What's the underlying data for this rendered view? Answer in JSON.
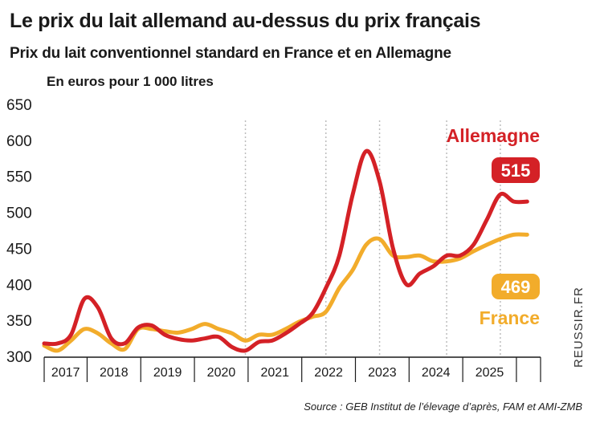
{
  "title": "Le prix du lait allemand au-dessus du prix français",
  "subtitle": "Prix du lait conventionnel standard en France et en Allemagne",
  "units": "En euros pour 1 000 litres",
  "source": "Source : GEB Institut de l’élevage d’après, FAM et AMI-ZMB",
  "credit": "REUSSIR.FR",
  "colors": {
    "germany": "#d42126",
    "france": "#f2ac2b",
    "grid": "#bdbdbd",
    "axis": "#1a1a1a"
  },
  "chart_data": {
    "type": "line",
    "title": "Le prix du lait allemand au-dessus du prix français",
    "ylabel": "En euros pour 1 000 litres",
    "ylim": [
      300,
      650
    ],
    "yticks": [
      300,
      350,
      400,
      450,
      500,
      550,
      600,
      650
    ],
    "xlim": [
      2016.5,
      2025.75
    ],
    "x_categories": [
      "2017",
      "2018",
      "2019",
      "2020",
      "2021",
      "2022",
      "2023",
      "2024",
      "2025"
    ],
    "x_tick_labels": [
      "2017",
      "2018",
      "2019",
      "2020",
      "2021",
      "2022",
      "2023",
      "2024",
      "2025"
    ],
    "grid": "vertical dotted lines at selected year boundaries",
    "x": [
      2016.5,
      2016.75,
      2017.0,
      2017.25,
      2017.5,
      2017.75,
      2018.0,
      2018.25,
      2018.5,
      2018.75,
      2019.0,
      2019.25,
      2019.5,
      2019.75,
      2020.0,
      2020.25,
      2020.5,
      2020.75,
      2021.0,
      2021.25,
      2021.5,
      2021.75,
      2022.0,
      2022.25,
      2022.5,
      2022.75,
      2023.0,
      2023.25,
      2023.5,
      2023.75,
      2024.0,
      2024.25,
      2024.5,
      2024.75,
      2025.0,
      2025.25,
      2025.5
    ],
    "series": [
      {
        "name": "Allemagne",
        "last_value_label": "515",
        "values": [
          318,
          318,
          330,
          380,
          368,
          325,
          318,
          340,
          343,
          330,
          324,
          322,
          325,
          327,
          313,
          308,
          320,
          322,
          332,
          345,
          360,
          395,
          440,
          525,
          585,
          543,
          450,
          400,
          415,
          425,
          440,
          440,
          455,
          490,
          525,
          515,
          515
        ]
      },
      {
        "name": "France",
        "last_value_label": "469",
        "values": [
          315,
          308,
          322,
          338,
          332,
          318,
          310,
          338,
          338,
          335,
          333,
          338,
          345,
          338,
          332,
          322,
          330,
          330,
          338,
          348,
          355,
          362,
          395,
          420,
          455,
          463,
          440,
          438,
          440,
          432,
          432,
          436,
          446,
          455,
          463,
          469,
          469
        ]
      }
    ]
  }
}
